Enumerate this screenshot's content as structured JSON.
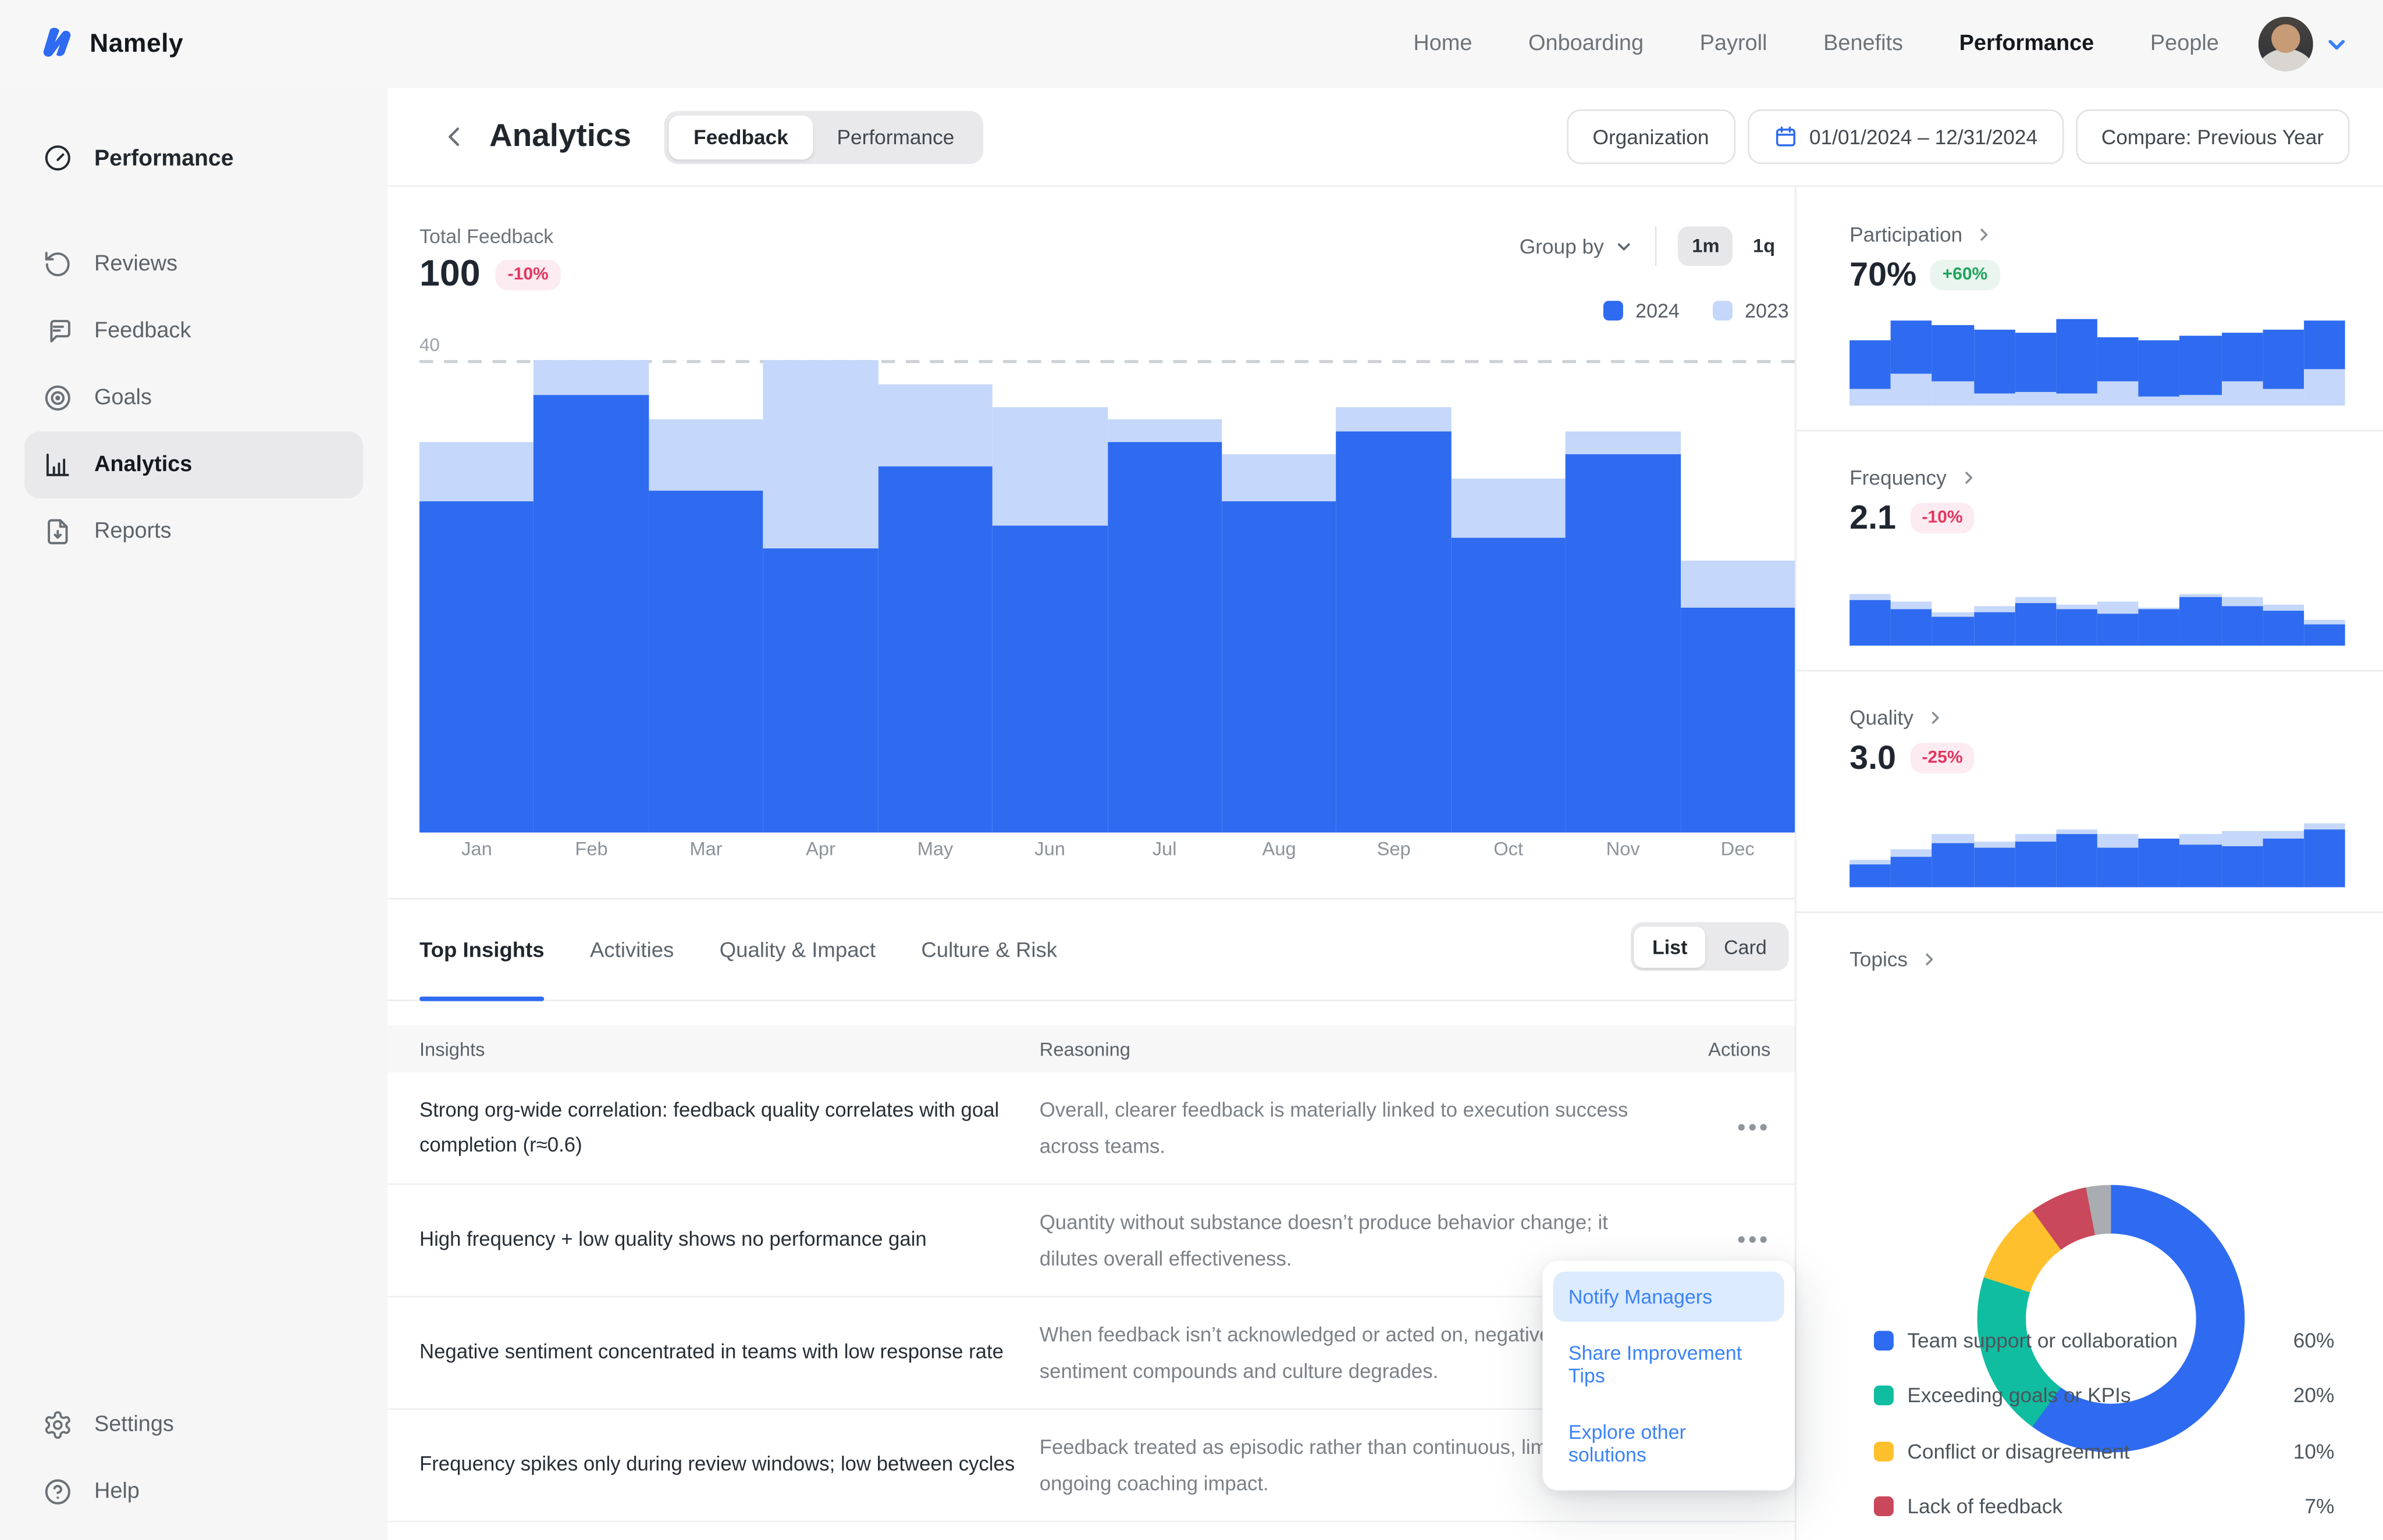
{
  "colors": {
    "primary_blue": "#2e6bf0",
    "light_blue": "#c5d7fa",
    "link_blue": "#3b82f6",
    "teal": "#10bda0",
    "yellow": "#ffc02e",
    "crimson": "#c9485b",
    "slice_gray": "#a9adb2",
    "badge_red_text": "#e3365f",
    "badge_green_text": "#21a45d"
  },
  "topnav": {
    "brand": "Namely",
    "items": [
      "Home",
      "Onboarding",
      "Payroll",
      "Benefits",
      "Performance",
      "People"
    ],
    "active_item": "Performance"
  },
  "sidebar": {
    "root": "Performance",
    "items": [
      "Reviews",
      "Feedback",
      "Goals",
      "Analytics",
      "Reports"
    ],
    "active_item": "Analytics",
    "bottom": [
      "Settings",
      "Help"
    ]
  },
  "header": {
    "title": "Analytics",
    "segments": [
      "Feedback",
      "Performance"
    ],
    "active_segment": "Feedback",
    "organization_button": "Organization",
    "date_range": "01/01/2024 – 12/31/2024",
    "compare_button": "Compare: Previous Year"
  },
  "controls": {
    "group_by": "Group by",
    "granularity": [
      "1m",
      "1q"
    ],
    "active_granularity": "1m"
  },
  "insights": {
    "tabs": [
      "Top Insights",
      "Activities",
      "Quality & Impact",
      "Culture & Risk"
    ],
    "active_tab": "Top Insights",
    "view_toggle": [
      "List",
      "Card"
    ],
    "active_view": "List",
    "columns": [
      "Insights",
      "Reasoning",
      "Actions"
    ],
    "rows": [
      {
        "insight": "Strong org-wide correlation: feedback quality correlates with goal completion (r≈0.6)",
        "reasoning": "Overall, clearer feedback is materially linked to execution success across teams.",
        "actions": "•••"
      },
      {
        "insight": "High frequency + low quality shows no performance gain",
        "reasoning": "Quantity without substance doesn’t produce behavior change; it dilutes overall effectiveness.",
        "actions": "•••"
      },
      {
        "insight": "Negative sentiment concentrated in teams with low response rate",
        "reasoning": "When feedback isn’t acknowledged or acted on, negative sentiment compounds and culture degrades.",
        "actions": "•••"
      },
      {
        "insight": "Frequency spikes only during review windows; low between cycles",
        "reasoning": "Feedback treated as episodic rather than continuous, limiting ongoing coaching impact.",
        "actions": "•••"
      }
    ],
    "menu": {
      "items": [
        "Notify Managers",
        "Share Improvement Tips",
        "Explore other solutions"
      ],
      "active_item": "Notify Managers"
    }
  },
  "chart_data": [
    {
      "id": "total-feedback",
      "type": "bar",
      "mode": "overlay",
      "title": "Total Feedback",
      "total": "100",
      "delta": "-10%",
      "gridline_label": "40",
      "ylim": [
        0,
        40
      ],
      "categories": [
        "Jan",
        "Feb",
        "Mar",
        "Apr",
        "May",
        "Jun",
        "Jul",
        "Aug",
        "Sep",
        "Oct",
        "Nov",
        "Dec"
      ],
      "series": [
        {
          "name": "2024",
          "color": "#2e6bf0",
          "values": [
            28,
            37,
            29,
            24,
            31,
            26,
            33,
            28,
            34,
            25,
            32,
            19
          ]
        },
        {
          "name": "2023",
          "color": "#c5d7fa",
          "values": [
            33,
            40,
            35,
            40,
            38,
            36,
            35,
            32,
            36,
            30,
            34,
            23
          ]
        }
      ]
    },
    {
      "id": "participation",
      "type": "bar",
      "mode": "stacked",
      "label": "Participation",
      "value": "70%",
      "delta": "+60%",
      "ylim": [
        0,
        100
      ],
      "series": [
        {
          "name": "2024",
          "color": "#2e6bf0",
          "values": [
            56,
            61,
            63,
            74,
            67,
            86,
            50,
            64,
            67,
            56,
            67,
            56
          ]
        },
        {
          "name": "2023",
          "color": "#c5d7fa",
          "values": [
            19,
            36,
            28,
            13,
            16,
            13,
            28,
            11,
            12,
            27,
            19,
            41
          ]
        }
      ]
    },
    {
      "id": "frequency",
      "type": "bar",
      "mode": "overlay",
      "label": "Frequency",
      "value": "2.1",
      "delta": "-10%",
      "ylim": [
        0,
        100
      ],
      "series": [
        {
          "name": "2024",
          "color": "#2e6bf0",
          "values": [
            52,
            42,
            33,
            38,
            48,
            42,
            36,
            42,
            55,
            44,
            40,
            24
          ]
        },
        {
          "name": "2023",
          "color": "#c5d7fa",
          "values": [
            58,
            50,
            38,
            44,
            56,
            46,
            50,
            43,
            58,
            56,
            46,
            30
          ]
        }
      ]
    },
    {
      "id": "quality",
      "type": "bar",
      "mode": "overlay",
      "label": "Quality",
      "value": "3.0",
      "delta": "-25%",
      "ylim": [
        0,
        100
      ],
      "series": [
        {
          "name": "2024",
          "color": "#2e6bf0",
          "values": [
            26,
            34,
            50,
            44,
            52,
            60,
            44,
            56,
            48,
            46,
            56,
            66
          ]
        },
        {
          "name": "2023",
          "color": "#c5d7fa",
          "values": [
            31,
            43,
            60,
            51,
            60,
            66,
            60,
            56,
            60,
            63,
            63,
            73
          ]
        }
      ]
    },
    {
      "id": "topics",
      "type": "pie",
      "label": "Topics",
      "slices": [
        {
          "label": "Team support or collaboration",
          "value": 60,
          "pct": "60%",
          "color": "#2e6bf0"
        },
        {
          "label": "Exceeding goals or KPIs",
          "value": 20,
          "pct": "20%",
          "color": "#10bda0"
        },
        {
          "label": "Conflict or disagreement",
          "value": 10,
          "pct": "10%",
          "color": "#ffc02e"
        },
        {
          "label": "Lack of feedback",
          "value": 7,
          "pct": "7%",
          "color": "#c9485b"
        },
        {
          "label": "",
          "value": 3,
          "pct": "",
          "color": "#a9adb2"
        }
      ]
    }
  ]
}
